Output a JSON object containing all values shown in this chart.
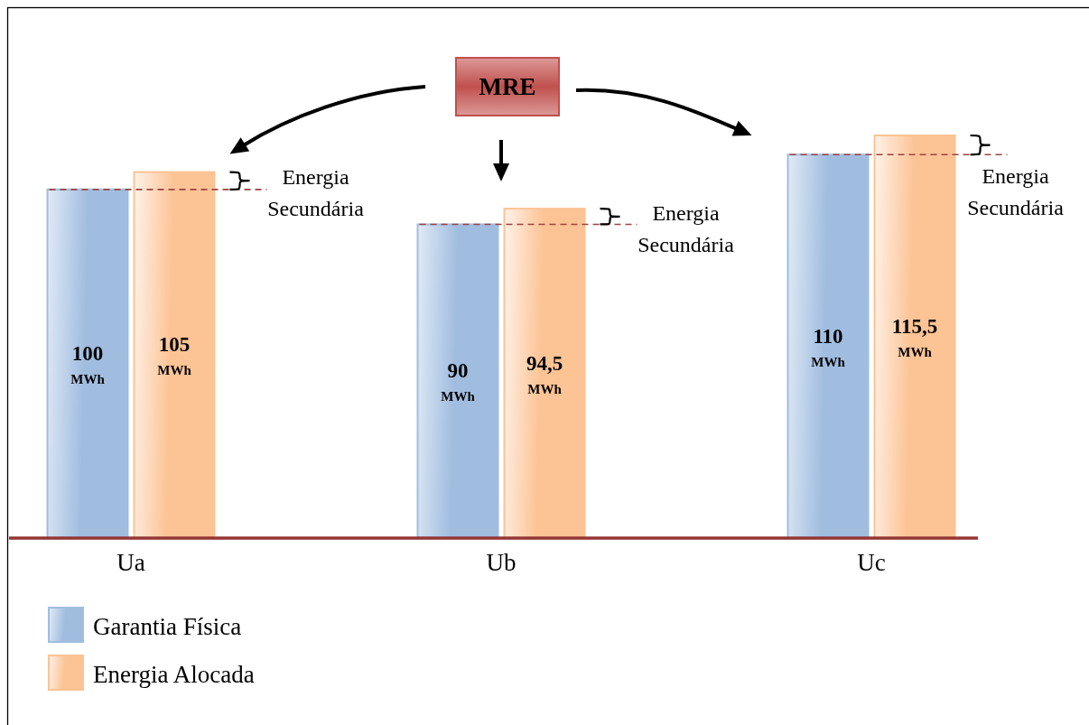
{
  "chart_data": {
    "type": "bar",
    "categories": [
      "Ua",
      "Ub",
      "Uc"
    ],
    "series": [
      {
        "name": "Garantia Física",
        "color": "#a0bde0",
        "values": [
          100,
          90,
          110
        ],
        "value_labels": [
          "100 MWh",
          "90 MWh",
          "110 MWh"
        ]
      },
      {
        "name": "Energia Alocada",
        "color": "#fcc394",
        "values": [
          105,
          94.5,
          115.5
        ],
        "value_labels": [
          "105 MWh",
          "94,5 MWh",
          "115,5 MWh"
        ]
      }
    ],
    "ref_lines": [
      {
        "axis": "y",
        "value": 100,
        "color": "#a0413f",
        "line_style": "dashed"
      },
      {
        "axis": "y",
        "value": 90,
        "color": "#a0413f",
        "line_style": "dashed"
      },
      {
        "axis": "y",
        "value": 110,
        "color": "#a0413f",
        "line_style": "dashed"
      }
    ],
    "annotations": [
      "MRE",
      "Energia Secundária",
      "Energia Secundária",
      "Energia Secundária"
    ],
    "legend": "bottom left"
  }
}
